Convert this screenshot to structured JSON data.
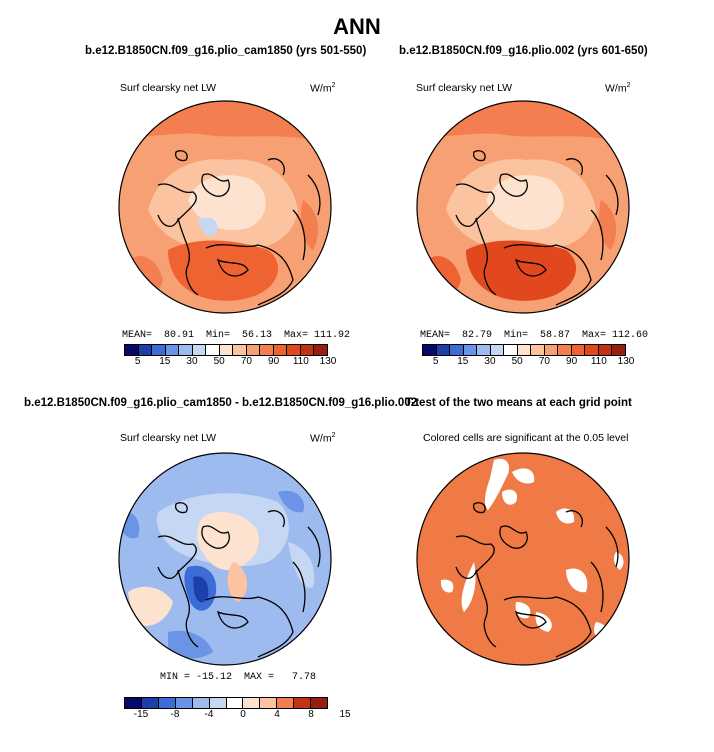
{
  "figure": {
    "title": "ANN"
  },
  "panels": {
    "p1": {
      "title": "b.e12.B1850CN.f09_g16.plio_cam1850 (yrs 501-550)",
      "variable": "Surf clearsky net LW",
      "units_base": "W/m",
      "units_exp": "2",
      "stats": "MEAN=  80.91  Min=  56.13  Max= 111.92",
      "colorbar": {
        "colors": [
          "#08086b",
          "#1c3fa8",
          "#3d6cd6",
          "#6b93e6",
          "#9dbbef",
          "#c6d7f4",
          "#ffffff",
          "#fde2cf",
          "#fbc3a0",
          "#f7a073",
          "#f37f50",
          "#ef6332",
          "#e1481d",
          "#c33214",
          "#981e0f"
        ],
        "ticks": [
          "5",
          "15",
          "30",
          "50",
          "70",
          "90",
          "110",
          "130"
        ]
      }
    },
    "p2": {
      "title": "b.e12.B1850CN.f09_g16.plio.002 (yrs 601-650)",
      "variable": "Surf clearsky net LW",
      "units_base": "W/m",
      "units_exp": "2",
      "stats": "MEAN=  82.79  Min=  58.87  Max= 112.60",
      "colorbar": {
        "ticks": [
          "5",
          "15",
          "30",
          "50",
          "70",
          "90",
          "110",
          "130"
        ]
      }
    },
    "p3": {
      "title": "b.e12.B1850CN.f09_g16.plio_cam1850 - b.e12.B1850CN.f09_g16.plio.002",
      "variable": "Surf clearsky net LW",
      "units_base": "W/m",
      "units_exp": "2",
      "stats": "MIN = -15.12  MAX =   7.78",
      "colorbar": {
        "colors": [
          "#08086b",
          "#1c3fa8",
          "#3d6cd6",
          "#6b93e6",
          "#9dbbef",
          "#c6d7f4",
          "#ffffff",
          "#fde2cf",
          "#fbc3a0",
          "#f37f50",
          "#c33214",
          "#981e0f"
        ],
        "ticks": [
          "-15",
          "-8",
          "-4",
          "0",
          "4",
          "8",
          "15"
        ]
      }
    },
    "p4": {
      "title": "T-test of the two means at each grid point",
      "subtitle": "Colored cells are significant at the 0.05 level",
      "color": "#f07a45"
    }
  }
}
